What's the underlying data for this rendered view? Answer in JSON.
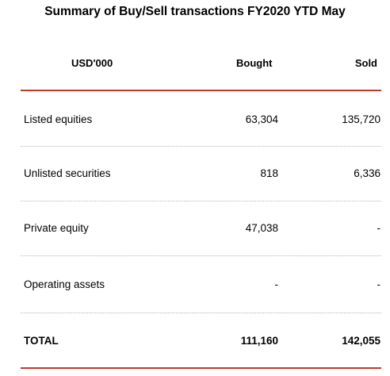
{
  "title": "Summary of Buy/Sell transactions FY2020 YTD May",
  "columns": {
    "label": "USD'000",
    "bought": "Bought",
    "sold": "Sold"
  },
  "colors": {
    "rule_red": "#c0392b",
    "rule_dotted": "#b8b8b8"
  },
  "rows": [
    {
      "label": "Listed equities",
      "bought": "63,304",
      "sold": "135,720"
    },
    {
      "label": "Unlisted securities",
      "bought": "818",
      "sold": "6,336"
    },
    {
      "label": "Private equity",
      "bought": "47,038",
      "sold": "-"
    },
    {
      "label": "Operating assets",
      "bought": "-",
      "sold": "-"
    }
  ],
  "total": {
    "label": "TOTAL",
    "bought": "111,160",
    "sold": "142,055"
  }
}
